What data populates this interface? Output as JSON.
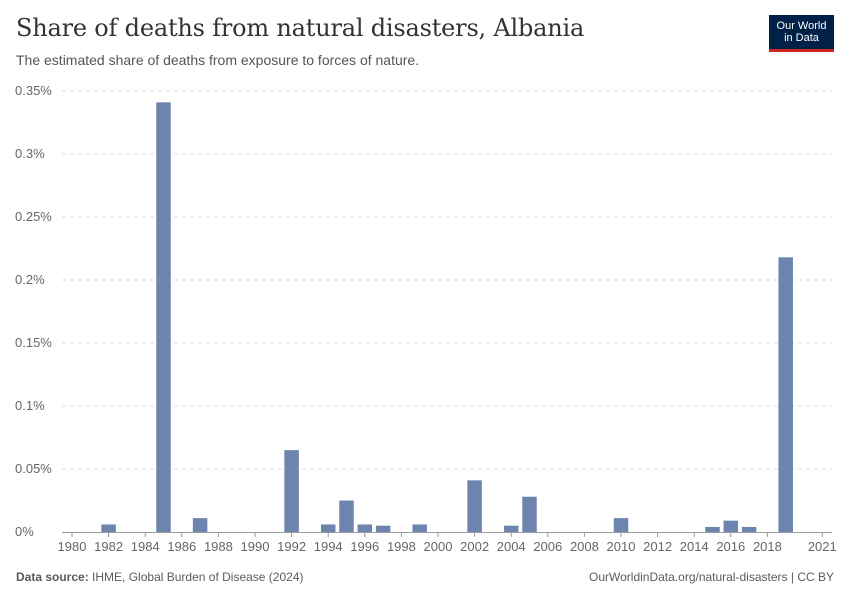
{
  "header": {
    "title": "Share of deaths from natural disasters, Albania",
    "subtitle": "The estimated share of deaths from exposure to forces of nature."
  },
  "logo": {
    "line1": "Our World",
    "line2": "in Data"
  },
  "footer": {
    "source_label": "Data source:",
    "source_text": "IHME, Global Burden of Disease (2024)",
    "credit": "OurWorldinData.org/natural-disasters | CC BY"
  },
  "colors": {
    "bar": "#6d84ae",
    "grid": "#dddddd",
    "axis": "#999999",
    "logo_bg": "#002147",
    "logo_accent": "#ce261e"
  },
  "chart_data": {
    "type": "bar",
    "title": "Share of deaths from natural disasters, Albania",
    "xlabel": "",
    "ylabel": "",
    "xlim": [
      1980,
      2021
    ],
    "ylim": [
      0,
      0.35
    ],
    "y_ticks": [
      0,
      0.05,
      0.1,
      0.15,
      0.2,
      0.25,
      0.3,
      0.35
    ],
    "y_tick_labels": [
      "0%",
      "0.05%",
      "0.1%",
      "0.15%",
      "0.2%",
      "0.25%",
      "0.3%",
      "0.35%"
    ],
    "x_ticks": [
      1980,
      1982,
      1984,
      1986,
      1988,
      1990,
      1992,
      1994,
      1996,
      1998,
      2000,
      2002,
      2004,
      2006,
      2008,
      2010,
      2012,
      2014,
      2016,
      2018,
      2021
    ],
    "x_tick_labels": [
      "1980",
      "1982",
      "1984",
      "1986",
      "1988",
      "1990",
      "1992",
      "1994",
      "1996",
      "1998",
      "2000",
      "2002",
      "2004",
      "2006",
      "2008",
      "2010",
      "2012",
      "2014",
      "2016",
      "2018",
      "2021"
    ],
    "unit": "%",
    "x": [
      1982,
      1985,
      1987,
      1992,
      1994,
      1995,
      1996,
      1997,
      1999,
      2002,
      2004,
      2005,
      2010,
      2015,
      2016,
      2017,
      2019
    ],
    "values": [
      0.006,
      0.341,
      0.011,
      0.065,
      0.006,
      0.025,
      0.006,
      0.005,
      0.006,
      0.041,
      0.005,
      0.028,
      0.011,
      0.004,
      0.009,
      0.004,
      0.218
    ],
    "grid": true,
    "legend": "none"
  }
}
